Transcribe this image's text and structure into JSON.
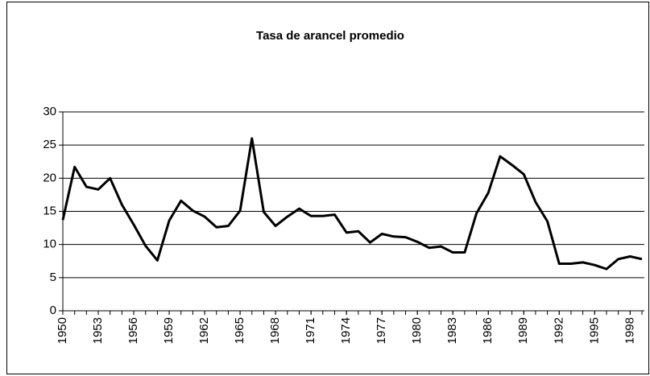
{
  "chart_data": {
    "type": "line",
    "title": "Tasa de arancel promedio",
    "x": [
      1950,
      1951,
      1952,
      1953,
      1954,
      1955,
      1956,
      1957,
      1958,
      1959,
      1960,
      1961,
      1962,
      1963,
      1964,
      1965,
      1966,
      1967,
      1968,
      1969,
      1970,
      1971,
      1972,
      1973,
      1974,
      1975,
      1976,
      1977,
      1978,
      1979,
      1980,
      1981,
      1982,
      1983,
      1984,
      1985,
      1986,
      1987,
      1988,
      1989,
      1990,
      1991,
      1992,
      1993,
      1994,
      1995,
      1996,
      1997,
      1998,
      1999
    ],
    "series": [
      {
        "name": "Tasa de arancel promedio",
        "color": "#000000",
        "values": [
          13.7,
          21.7,
          18.7,
          18.3,
          20.0,
          16.0,
          13.0,
          9.8,
          7.6,
          13.6,
          16.6,
          15.1,
          14.2,
          12.6,
          12.8,
          15.1,
          26.0,
          14.9,
          12.8,
          14.2,
          15.4,
          14.3,
          14.3,
          14.5,
          11.8,
          12.0,
          10.3,
          11.6,
          11.2,
          11.1,
          10.4,
          9.5,
          9.7,
          8.8,
          8.8,
          14.7,
          17.8,
          23.3,
          22.0,
          20.6,
          16.4,
          13.5,
          7.1,
          7.1,
          7.3,
          6.9,
          6.3,
          7.8,
          8.2,
          7.8
        ]
      }
    ],
    "xlim": [
      1950,
      1999
    ],
    "xticks": [
      1950,
      1953,
      1956,
      1959,
      1962,
      1965,
      1968,
      1971,
      1974,
      1977,
      1980,
      1983,
      1986,
      1989,
      1992,
      1995,
      1998
    ],
    "ylim": [
      0,
      30
    ],
    "yticks": [
      0,
      5,
      10,
      15,
      20,
      25,
      30
    ],
    "grid": true
  }
}
